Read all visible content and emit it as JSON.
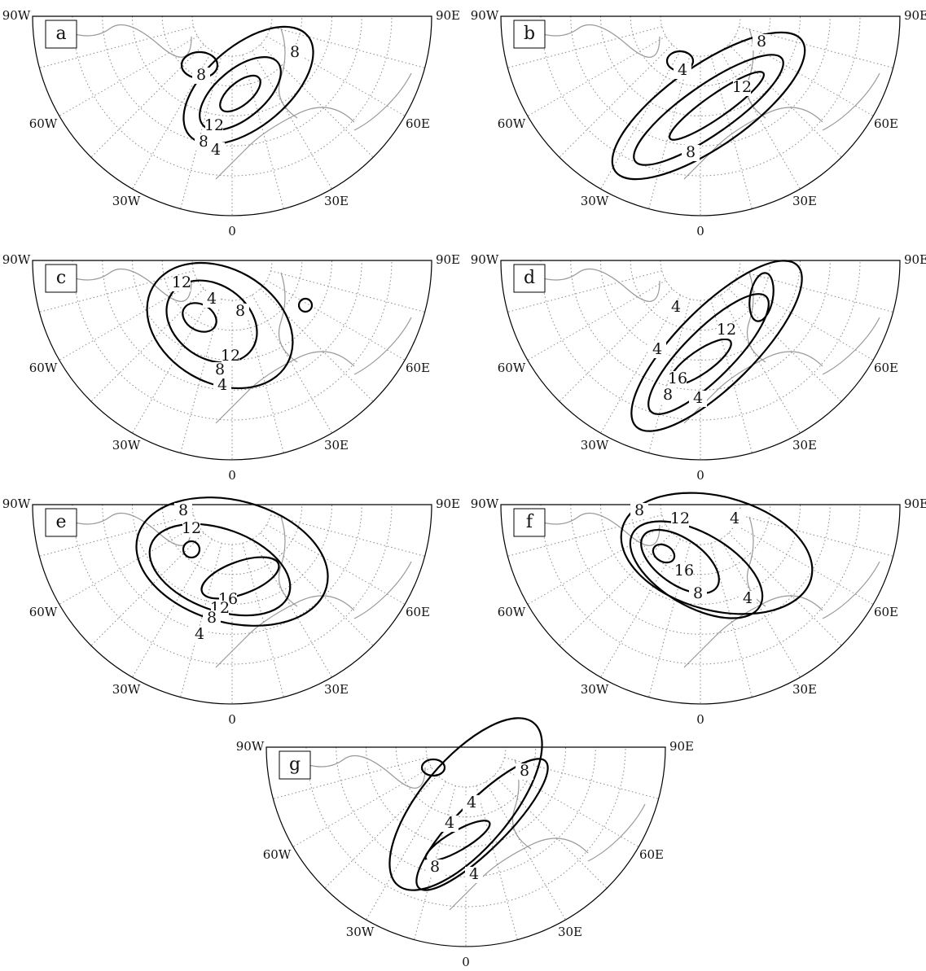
{
  "longitudes": [
    "90W",
    "60W",
    "30W",
    "0",
    "30E",
    "60E",
    "90E"
  ],
  "panels": [
    {
      "label": "a",
      "contour_labels": [
        8,
        8,
        12,
        8,
        4
      ]
    },
    {
      "label": "b",
      "contour_labels": [
        4,
        8,
        12,
        8
      ]
    },
    {
      "label": "c",
      "contour_labels": [
        12,
        4,
        8,
        12,
        8,
        4
      ]
    },
    {
      "label": "d",
      "contour_labels": [
        4,
        12,
        4,
        16,
        8,
        4
      ]
    },
    {
      "label": "e",
      "contour_labels": [
        8,
        12,
        16,
        12,
        8,
        4
      ]
    },
    {
      "label": "f",
      "contour_labels": [
        8,
        12,
        4,
        16,
        8,
        4
      ]
    },
    {
      "label": "g",
      "contour_labels": [
        8,
        4,
        4,
        8,
        4
      ]
    }
  ]
}
